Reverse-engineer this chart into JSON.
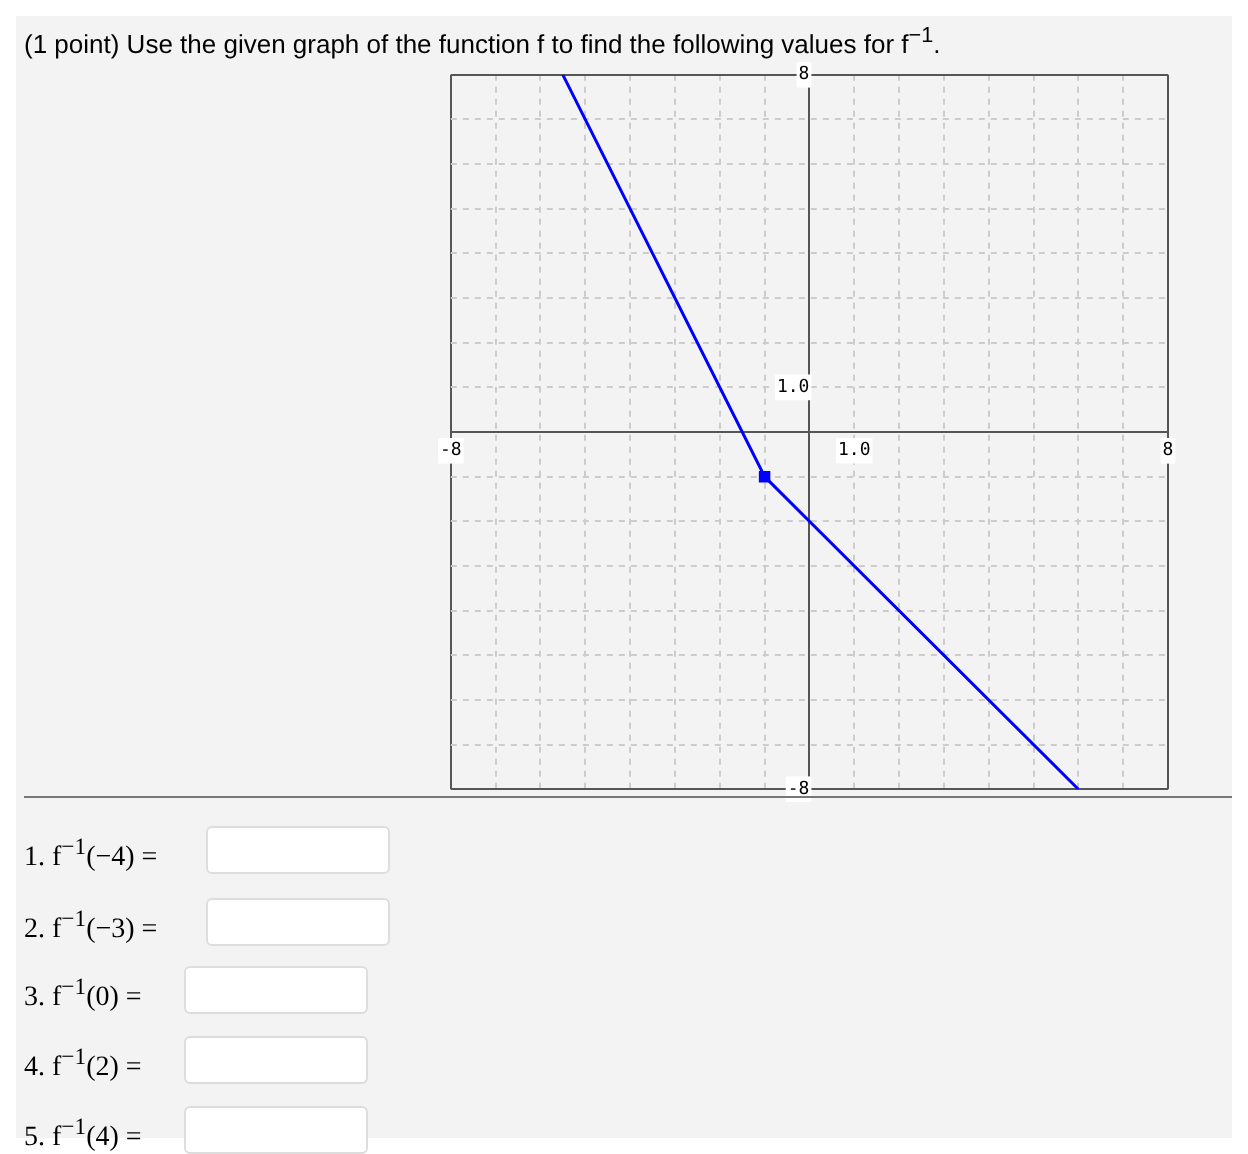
{
  "chart_data": {
    "type": "line",
    "title": "(1 point) Use the given graph of the function f to find the following values for f$^{−1}$.",
    "annotations": [
      "1. f$^{−1}$(−4) =",
      "2. f$^{−1}$(−3) =",
      "3. f$^{−1}$(0) =",
      "4. f$^{−1}$(2) =",
      "5. f$^{−1}$(4) ="
    ],
    "series": [
      {
        "color": "#0000ff",
        "x": [
          -5.5,
          -1,
          6
        ],
        "values": [
          8,
          -1,
          -8
        ],
        "marker": "none"
      },
      {
        "type": "scatter",
        "color": "#0000ff",
        "x": [
          -1
        ],
        "values": [
          -1
        ],
        "marker": "square"
      }
    ],
    "xlim": [
      -8,
      8
    ],
    "ylim": [
      -8,
      8
    ],
    "xticks": [
      -8,
      {
        "value": -7,
        "label": null
      },
      {
        "value": -6,
        "label": null
      },
      {
        "value": -5,
        "label": null
      },
      {
        "value": -4,
        "label": null
      },
      {
        "value": -3,
        "label": null
      },
      {
        "value": -2,
        "label": null
      },
      {
        "value": -1,
        "label": null
      },
      {
        "value": 0,
        "label": null
      },
      {
        "value": 1,
        "label": "1.0"
      },
      {
        "value": 2,
        "label": null
      },
      {
        "value": 3,
        "label": null
      },
      {
        "value": 4,
        "label": null
      },
      {
        "value": 5,
        "label": null
      },
      {
        "value": 6,
        "label": null
      },
      {
        "value": 7,
        "label": null
      },
      8
    ],
    "yticks": [
      -8,
      {
        "value": -7,
        "label": null
      },
      {
        "value": -6,
        "label": null
      },
      {
        "value": -5,
        "label": null
      },
      {
        "value": -4,
        "label": null
      },
      {
        "value": -3,
        "label": null
      },
      {
        "value": -2,
        "label": null
      },
      {
        "value": -1,
        "label": null
      },
      {
        "value": 0,
        "label": null
      },
      {
        "value": 1,
        "label": "1.0"
      },
      {
        "value": 2,
        "label": null
      },
      {
        "value": 3,
        "label": null
      },
      {
        "value": 4,
        "label": null
      },
      {
        "value": 5,
        "label": null
      },
      {
        "value": 6,
        "label": null
      },
      {
        "value": 7,
        "label": null
      },
      8
    ],
    "grid": true,
    "legend": false
  }
}
